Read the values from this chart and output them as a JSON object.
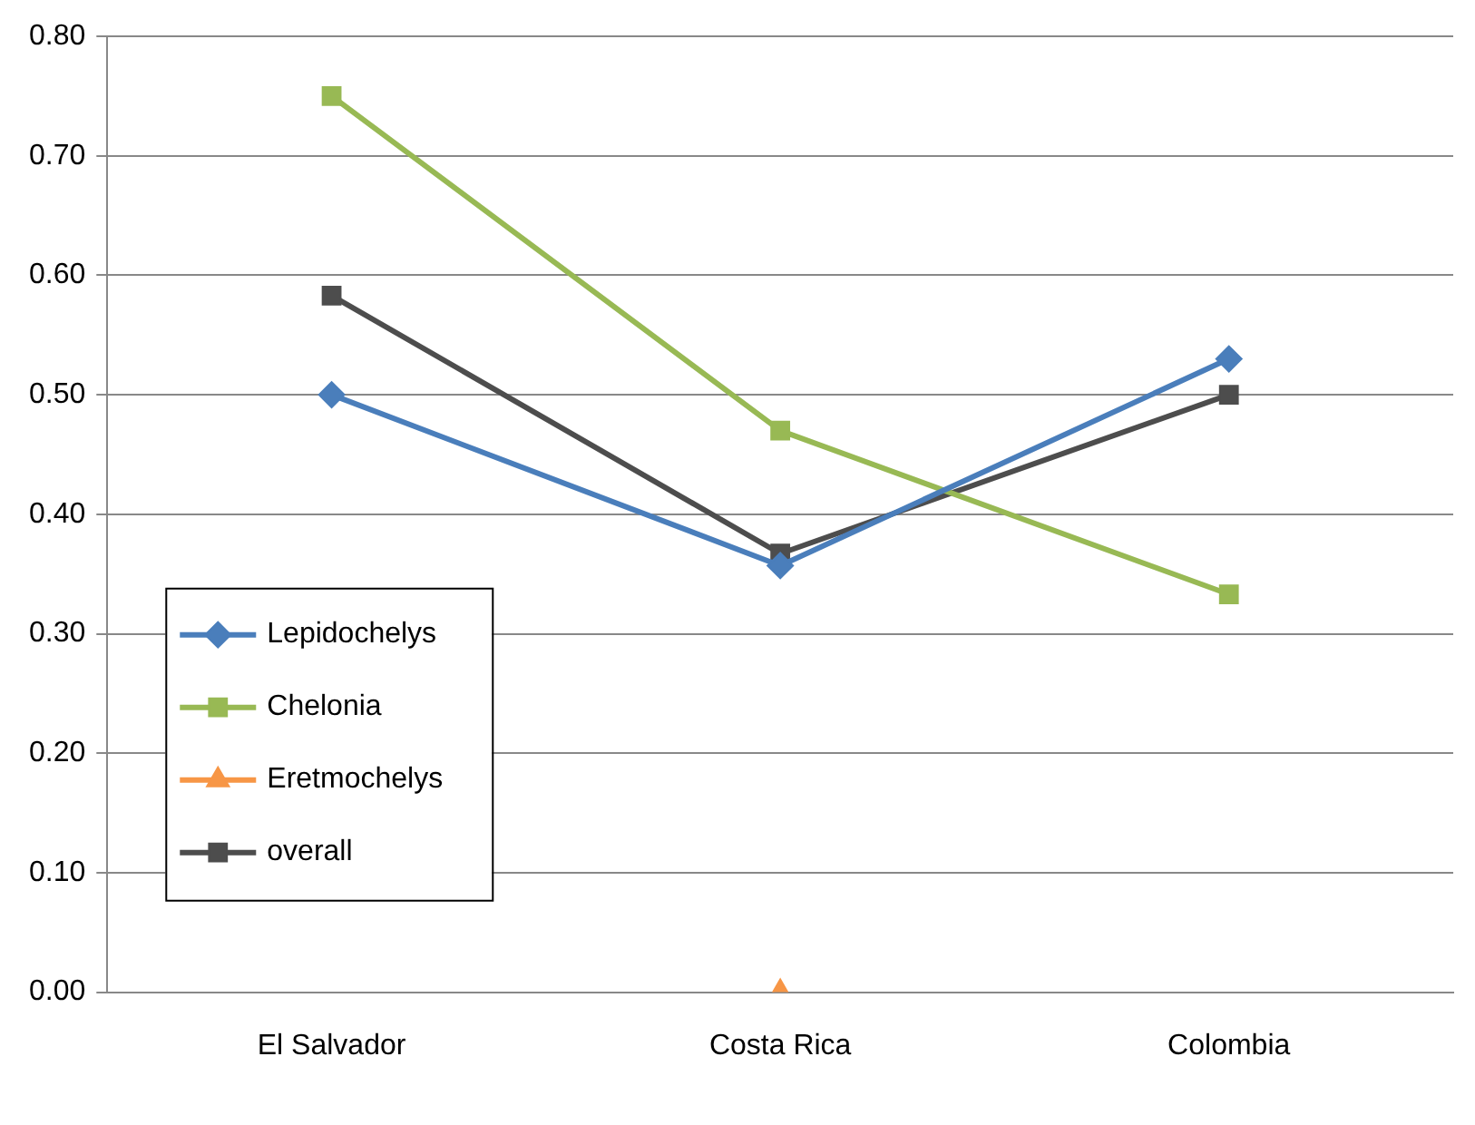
{
  "chart_data": {
    "type": "line",
    "categories": [
      "El Salvador",
      "Costa Rica",
      "Colombia"
    ],
    "series": [
      {
        "name": "Lepidochelys",
        "color": "#4a7ebb",
        "marker": "diamond",
        "values": [
          0.5,
          0.357,
          0.53
        ]
      },
      {
        "name": "Chelonia",
        "color": "#98b954",
        "marker": "square",
        "values": [
          0.75,
          0.47,
          0.333
        ]
      },
      {
        "name": "Eretmochelys",
        "color": "#f79646",
        "marker": "triangle",
        "values": [
          null,
          0,
          null
        ]
      },
      {
        "name": "overall",
        "color": "#4d4d4d",
        "marker": "square",
        "values": [
          0.583,
          0.367,
          0.5
        ]
      }
    ],
    "ylim": [
      0,
      0.8
    ],
    "yticks": [
      {
        "value": 0,
        "label": "0.00"
      },
      {
        "value": 0.1,
        "label": "0.10"
      },
      {
        "value": 0.2,
        "label": "0.20"
      },
      {
        "value": 0.3,
        "label": "0.30"
      },
      {
        "value": 0.4,
        "label": "0.40"
      },
      {
        "value": 0.5,
        "label": "0.50"
      },
      {
        "value": 0.6,
        "label": "0.60"
      },
      {
        "value": 0.7,
        "label": "0.70"
      },
      {
        "value": 0.8,
        "label": "0.80"
      }
    ],
    "grid": "y",
    "legend": "left"
  }
}
